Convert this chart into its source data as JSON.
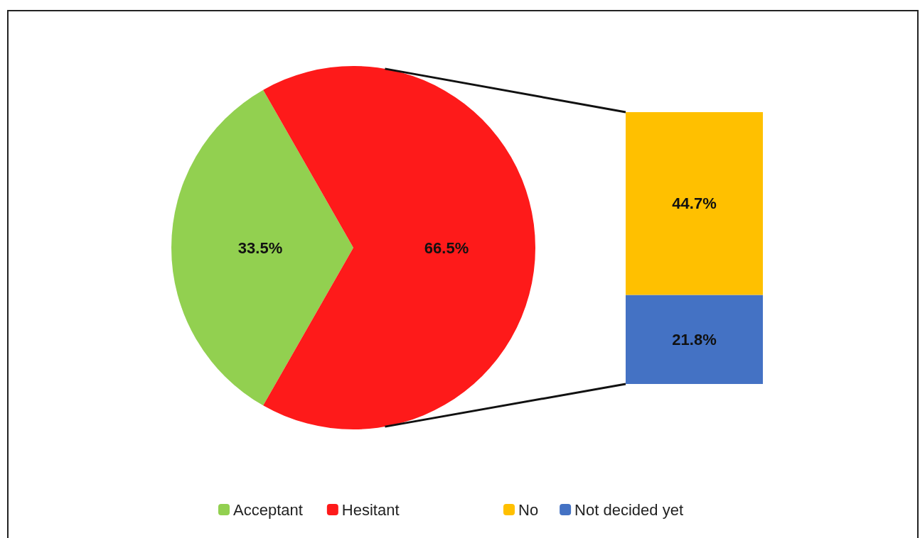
{
  "chart_data": [
    {
      "type": "pie",
      "categories": [
        "Acceptant",
        "Hesitant"
      ],
      "values": [
        33.5,
        66.5
      ],
      "colors": [
        "#92d050",
        "#fe1a1a"
      ],
      "value_labels": [
        "33.5%",
        "66.5%"
      ],
      "legend": "bottom"
    },
    {
      "type": "bar",
      "stacked": true,
      "tick_labels": false,
      "categories": [
        null
      ],
      "legend": "bottom",
      "series": [
        {
          "name": "Not decided yet",
          "color": "#4472c4",
          "values": [
            21.8
          ],
          "value_labels": [
            "21.8%"
          ]
        },
        {
          "name": "No",
          "color": "#ffc000",
          "values": [
            44.7
          ],
          "value_labels": [
            "44.7%"
          ]
        }
      ]
    }
  ]
}
